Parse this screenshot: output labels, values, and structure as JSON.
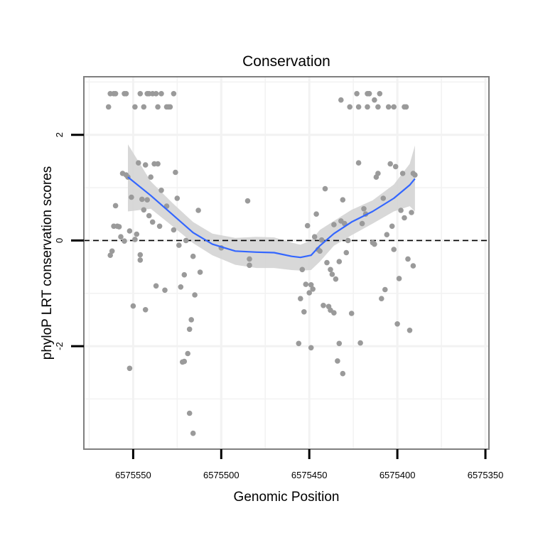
{
  "chart_data": {
    "type": "scatter",
    "title": "Conservation",
    "xlabel": "Genomic Position",
    "ylabel": "phyloP LRT conservation scores",
    "x_reversed": true,
    "xlim": [
      6575578,
      6575348
    ],
    "ylim": [
      -3.95,
      3.1
    ],
    "x_ticks": [
      6575550,
      6575500,
      6575450,
      6575400,
      6575350
    ],
    "x_tick_labels": [
      "6575550",
      "6575500",
      "6575450",
      "6575400",
      "6575350"
    ],
    "y_ticks": [
      2,
      0,
      -2
    ],
    "y_tick_labels": [
      "2",
      "0",
      "-2"
    ],
    "reference_line": {
      "y": 0,
      "style": "dashed"
    },
    "grid": true,
    "colors": {
      "points": "#9a9a9a",
      "smooth": "#3366ff",
      "ribbon": "#d4d4d4",
      "panel_border": "#7f7f7f",
      "grid": "#f2f2f2"
    },
    "series": [
      {
        "name": "phyloP LRT scores",
        "type": "scatter",
        "points": [
          [
            6575564,
            2.53
          ],
          [
            6575563,
            2.78
          ],
          [
            6575561,
            2.78
          ],
          [
            6575560,
            2.78
          ],
          [
            6575555,
            2.78
          ],
          [
            6575554,
            2.78
          ],
          [
            6575549,
            2.53
          ],
          [
            6575546,
            2.78
          ],
          [
            6575544,
            2.53
          ],
          [
            6575542,
            2.78
          ],
          [
            6575541,
            2.78
          ],
          [
            6575539,
            2.78
          ],
          [
            6575537,
            2.78
          ],
          [
            6575536,
            2.53
          ],
          [
            6575534,
            2.78
          ],
          [
            6575531,
            2.53
          ],
          [
            6575530,
            2.53
          ],
          [
            6575529,
            2.53
          ],
          [
            6575527,
            2.78
          ],
          [
            6575563,
            -0.28
          ],
          [
            6575562,
            -0.2
          ],
          [
            6575561,
            0.27
          ],
          [
            6575560,
            0.66
          ],
          [
            6575559,
            0.27
          ],
          [
            6575558,
            0.26
          ],
          [
            6575557,
            0.07
          ],
          [
            6575556,
            1.27
          ],
          [
            6575555,
            -0.01
          ],
          [
            6575554,
            1.24
          ],
          [
            6575553,
            1.2
          ],
          [
            6575552,
            -2.42
          ],
          [
            6575552,
            0.18
          ],
          [
            6575551,
            0.82
          ],
          [
            6575550,
            -1.24
          ],
          [
            6575549,
            0.02
          ],
          [
            6575548,
            0.12
          ],
          [
            6575547,
            1.47
          ],
          [
            6575546,
            -0.37
          ],
          [
            6575546,
            -0.27
          ],
          [
            6575545,
            0.78
          ],
          [
            6575544,
            0.58
          ],
          [
            6575543,
            -1.31
          ],
          [
            6575543,
            1.43
          ],
          [
            6575542,
            0.77
          ],
          [
            6575541,
            0.47
          ],
          [
            6575540,
            1.2
          ],
          [
            6575539,
            0.35
          ],
          [
            6575538,
            1.45
          ],
          [
            6575537,
            -0.86
          ],
          [
            6575536,
            1.45
          ],
          [
            6575535,
            0.27
          ],
          [
            6575534,
            0.95
          ],
          [
            6575532,
            -0.94
          ],
          [
            6575531,
            0.65
          ],
          [
            6575527,
            0.2
          ],
          [
            6575526,
            1.29
          ],
          [
            6575525,
            0.8
          ],
          [
            6575524,
            -0.09
          ],
          [
            6575523,
            -0.88
          ],
          [
            6575522,
            -2.3
          ],
          [
            6575521,
            -2.29
          ],
          [
            6575521,
            -0.65
          ],
          [
            6575520,
            0.0
          ],
          [
            6575519,
            -2.14
          ],
          [
            6575518,
            -1.68
          ],
          [
            6575518,
            -3.27
          ],
          [
            6575517,
            -1.5
          ],
          [
            6575516,
            -0.3
          ],
          [
            6575516,
            -3.65
          ],
          [
            6575515,
            -1.03
          ],
          [
            6575513,
            0.57
          ],
          [
            6575512,
            -0.6
          ],
          [
            6575500,
            -0.14
          ],
          [
            6575485,
            0.75
          ],
          [
            6575484,
            -0.35
          ],
          [
            6575484,
            -0.47
          ],
          [
            6575456,
            -1.95
          ],
          [
            6575455,
            -1.1
          ],
          [
            6575454,
            -0.55
          ],
          [
            6575453,
            -1.35
          ],
          [
            6575452,
            -0.83
          ],
          [
            6575451,
            0.28
          ],
          [
            6575450,
            -0.99
          ],
          [
            6575449,
            -0.84
          ],
          [
            6575449,
            -2.03
          ],
          [
            6575448,
            -0.92
          ],
          [
            6575447,
            0.07
          ],
          [
            6575446,
            0.5
          ],
          [
            6575445,
            -0.17
          ],
          [
            6575444,
            -0.2
          ],
          [
            6575443,
            0.01
          ],
          [
            6575442,
            -1.23
          ],
          [
            6575441,
            0.98
          ],
          [
            6575440,
            -0.42
          ],
          [
            6575439,
            -1.25
          ],
          [
            6575438,
            -0.55
          ],
          [
            6575438,
            -1.32
          ],
          [
            6575437,
            -0.64
          ],
          [
            6575436,
            0.3
          ],
          [
            6575436,
            -1.37
          ],
          [
            6575435,
            -0.73
          ],
          [
            6575434,
            -2.28
          ],
          [
            6575433,
            -0.4
          ],
          [
            6575433,
            -1.95
          ],
          [
            6575432,
            0.37
          ],
          [
            6575431,
            -2.52
          ],
          [
            6575431,
            0.77
          ],
          [
            6575430,
            0.32
          ],
          [
            6575429,
            -0.23
          ],
          [
            6575428,
            0.0
          ],
          [
            6575426,
            -1.38
          ],
          [
            6575422,
            1.47
          ],
          [
            6575421,
            -1.94
          ],
          [
            6575420,
            0.32
          ],
          [
            6575419,
            0.6
          ],
          [
            6575418,
            0.5
          ],
          [
            6575414,
            -0.04
          ],
          [
            6575413,
            -0.07
          ],
          [
            6575412,
            1.2
          ],
          [
            6575411,
            1.27
          ],
          [
            6575409,
            -1.1
          ],
          [
            6575408,
            0.8
          ],
          [
            6575407,
            -0.93
          ],
          [
            6575406,
            0.11
          ],
          [
            6575404,
            1.45
          ],
          [
            6575403,
            0.27
          ],
          [
            6575402,
            -0.17
          ],
          [
            6575401,
            1.4
          ],
          [
            6575400,
            -1.58
          ],
          [
            6575399,
            -0.72
          ],
          [
            6575398,
            0.57
          ],
          [
            6575397,
            1.27
          ],
          [
            6575396,
            0.43
          ],
          [
            6575394,
            -0.35
          ],
          [
            6575393,
            -1.7
          ],
          [
            6575392,
            0.53
          ],
          [
            6575391,
            1.27
          ],
          [
            6575391,
            -0.48
          ],
          [
            6575390,
            1.24
          ],
          [
            6575405,
            2.53
          ],
          [
            6575402,
            2.53
          ],
          [
            6575396,
            2.53
          ],
          [
            6575410,
            2.78
          ],
          [
            6575416,
            2.78
          ],
          [
            6575423,
            2.78
          ],
          [
            6575411,
            2.53
          ],
          [
            6575413,
            2.66
          ],
          [
            6575417,
            2.78
          ],
          [
            6575422,
            2.53
          ],
          [
            6575427,
            2.53
          ],
          [
            6575432,
            2.66
          ],
          [
            6575416,
            2.78
          ],
          [
            6575417,
            2.53
          ],
          [
            6575395,
            2.53
          ]
        ]
      },
      {
        "name": "smooth fit",
        "type": "line",
        "x": [
          6575553,
          6575540,
          6575528,
          6575516,
          6575505,
          6575492,
          6575480,
          6575470,
          6575460,
          6575455,
          6575449,
          6575444,
          6575436,
          6575426,
          6575414,
          6575402,
          6575393,
          6575390
        ],
        "y": [
          1.2,
          0.85,
          0.5,
          0.15,
          -0.07,
          -0.2,
          -0.22,
          -0.23,
          -0.3,
          -0.32,
          -0.28,
          -0.1,
          0.13,
          0.35,
          0.55,
          0.8,
          1.05,
          1.17
        ]
      },
      {
        "name": "confidence band",
        "type": "area",
        "x": [
          6575553,
          6575540,
          6575528,
          6575516,
          6575505,
          6575492,
          6575480,
          6575470,
          6575460,
          6575455,
          6575449,
          6575444,
          6575436,
          6575426,
          6575414,
          6575402,
          6575393,
          6575390
        ],
        "lower": [
          0.55,
          0.6,
          0.28,
          -0.05,
          -0.28,
          -0.46,
          -0.52,
          -0.52,
          -0.56,
          -0.57,
          -0.56,
          -0.4,
          -0.1,
          0.1,
          0.32,
          0.55,
          0.65,
          0.55
        ],
        "upper": [
          1.82,
          1.12,
          0.72,
          0.35,
          0.13,
          0.05,
          0.07,
          0.06,
          -0.04,
          -0.08,
          0.0,
          0.2,
          0.37,
          0.58,
          0.76,
          1.06,
          1.45,
          1.8
        ]
      }
    ]
  }
}
